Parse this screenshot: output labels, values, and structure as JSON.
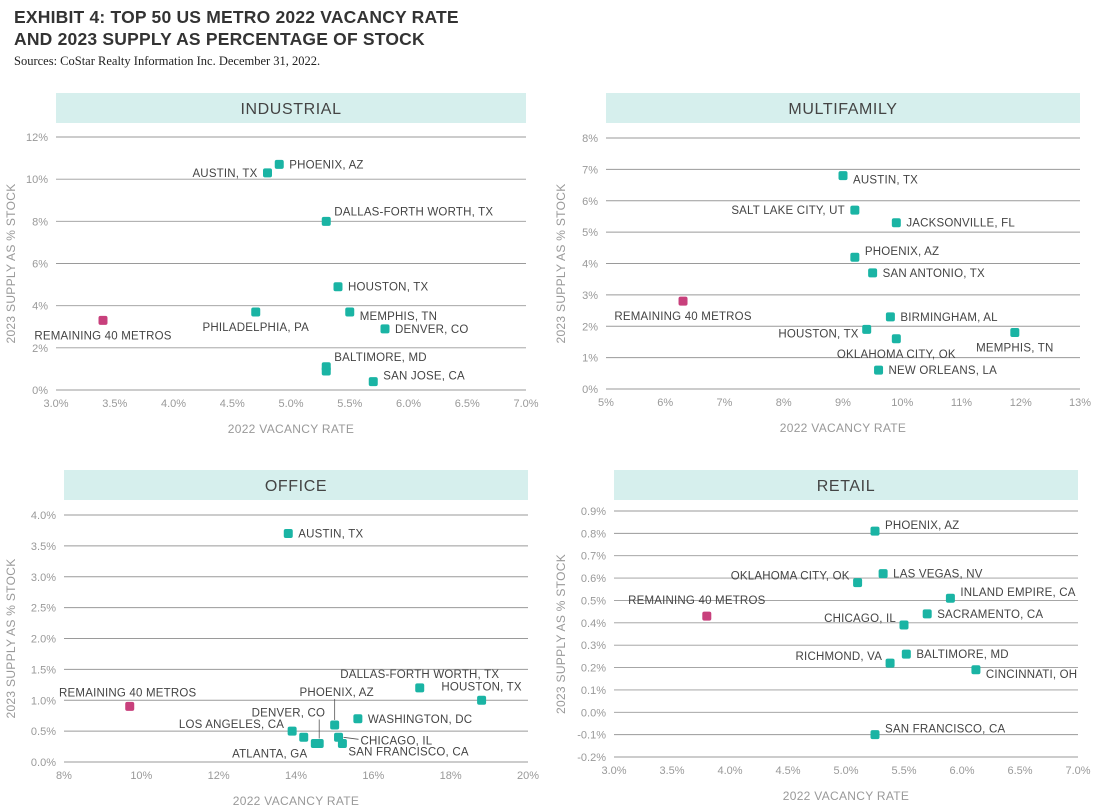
{
  "header": {
    "title_line1": "EXHIBIT 4: TOP 50 US METRO 2022 VACANCY RATE",
    "title_line2": "AND 2023 SUPPLY AS PERCENTAGE OF STOCK",
    "source": "Sources: CoStar Realty Information Inc. December 31, 2022."
  },
  "colors": {
    "metro": "#1ab4a4",
    "remaining": "#c8407c",
    "band": "#d6efed"
  },
  "chart_data": [
    {
      "type": "scatter",
      "title": "INDUSTRIAL",
      "xlabel": "2022 VACANCY RATE",
      "ylabel": "2023 SUPPLY AS % STOCK",
      "xlim": [
        3.0,
        7.0
      ],
      "ylim": [
        0,
        12
      ],
      "xticks": [
        3.0,
        3.5,
        4.0,
        4.5,
        5.0,
        5.5,
        6.0,
        6.5,
        7.0
      ],
      "xtick_labels": [
        "3.0%",
        "3.5%",
        "4.0%",
        "4.5%",
        "5.0%",
        "5.5%",
        "6.0%",
        "6.5%",
        "7.0%"
      ],
      "yticks": [
        0,
        2,
        4,
        6,
        8,
        10,
        12
      ],
      "ytick_labels": [
        "0%",
        "2%",
        "4%",
        "6%",
        "8%",
        "10%",
        "12%"
      ],
      "points": [
        {
          "label": "PHOENIX, AZ",
          "x": 4.9,
          "y": 10.7,
          "pos": "right"
        },
        {
          "label": "AUSTIN, TX",
          "x": 4.8,
          "y": 10.3,
          "pos": "left"
        },
        {
          "label": "DALLAS-FORTH WORTH, TX",
          "x": 5.3,
          "y": 8.0,
          "pos": "above-right"
        },
        {
          "label": "HOUSTON, TX",
          "x": 5.4,
          "y": 4.9,
          "pos": "right"
        },
        {
          "label": "PHILADELPHIA, PA",
          "x": 4.7,
          "y": 3.7,
          "pos": "below"
        },
        {
          "label": "MEMPHIS, TN",
          "x": 5.5,
          "y": 3.7,
          "pos": "right-low"
        },
        {
          "label": "DENVER, CO",
          "x": 5.8,
          "y": 2.9,
          "pos": "right"
        },
        {
          "label": "BALTIMORE, MD",
          "x": 5.3,
          "y": 1.1,
          "pos": "above-right"
        },
        {
          "label": "",
          "x": 5.3,
          "y": 0.9
        },
        {
          "label": "SAN JOSE, CA",
          "x": 5.7,
          "y": 0.4,
          "pos": "right-up"
        },
        {
          "label": "REMAINING 40 METROS",
          "x": 3.4,
          "y": 3.3,
          "pos": "below",
          "group": "remaining"
        }
      ]
    },
    {
      "type": "scatter",
      "title": "MULTIFAMILY",
      "xlabel": "2022 VACANCY RATE",
      "ylabel": "2023 SUPPLY AS % STOCK",
      "xlim": [
        5,
        13
      ],
      "ylim": [
        0,
        8
      ],
      "xticks": [
        5,
        6,
        7,
        8,
        9,
        10,
        11,
        12,
        13
      ],
      "xtick_labels": [
        "5%",
        "6%",
        "7%",
        "8%",
        "9%",
        "10%",
        "11%",
        "12%",
        "13%"
      ],
      "yticks": [
        0,
        1,
        2,
        3,
        4,
        5,
        6,
        7,
        8
      ],
      "ytick_labels": [
        "0%",
        "1%",
        "2%",
        "3%",
        "4%",
        "5%",
        "6%",
        "7%",
        "8%"
      ],
      "points": [
        {
          "label": "AUSTIN, TX",
          "x": 9.0,
          "y": 6.8,
          "pos": "right-low"
        },
        {
          "label": "SALT LAKE CITY, UT",
          "x": 9.2,
          "y": 5.7,
          "pos": "left"
        },
        {
          "label": "JACKSONVILLE, FL",
          "x": 9.9,
          "y": 5.3,
          "pos": "right"
        },
        {
          "label": "PHOENIX, AZ",
          "x": 9.2,
          "y": 4.2,
          "pos": "right-up"
        },
        {
          "label": "SAN ANTONIO, TX",
          "x": 9.5,
          "y": 3.7,
          "pos": "right"
        },
        {
          "label": "BIRMINGHAM, AL",
          "x": 9.8,
          "y": 2.3,
          "pos": "right"
        },
        {
          "label": "HOUSTON, TX",
          "x": 9.4,
          "y": 1.9,
          "pos": "left-low"
        },
        {
          "label": "OKLAHOMA CITY, OK",
          "x": 9.9,
          "y": 1.6,
          "pos": "below"
        },
        {
          "label": "MEMPHIS, TN",
          "x": 11.9,
          "y": 1.8,
          "pos": "below"
        },
        {
          "label": "NEW ORLEANS, LA",
          "x": 9.6,
          "y": 0.6,
          "pos": "right"
        },
        {
          "label": "REMAINING 40 METROS",
          "x": 6.3,
          "y": 2.8,
          "pos": "below",
          "group": "remaining"
        }
      ]
    },
    {
      "type": "scatter",
      "title": "OFFICE",
      "xlabel": "2022 VACANCY RATE",
      "ylabel": "2023 SUPPLY AS % STOCK",
      "xlim": [
        8,
        20
      ],
      "ylim": [
        0,
        4
      ],
      "xticks": [
        8,
        10,
        12,
        14,
        16,
        18,
        20
      ],
      "xtick_labels": [
        "8%",
        "10%",
        "12%",
        "14%",
        "16%",
        "18%",
        "20%"
      ],
      "yticks": [
        0,
        0.5,
        1.0,
        1.5,
        2.0,
        2.5,
        3.0,
        3.5,
        4.0
      ],
      "ytick_labels": [
        "0.0%",
        "0.5%",
        "1.0%",
        "1.5%",
        "2.0%",
        "2.5%",
        "3.0%",
        "3.5%",
        "4.0%"
      ],
      "points": [
        {
          "label": "AUSTIN, TX",
          "x": 13.8,
          "y": 3.7,
          "pos": "right"
        },
        {
          "label": "DALLAS-FORTH WORTH, TX",
          "x": 17.2,
          "y": 1.2,
          "pos": "above-center"
        },
        {
          "label": "HOUSTON, TX",
          "x": 18.8,
          "y": 1.0,
          "pos": "above-center"
        },
        {
          "label": "PHOENIX, AZ",
          "x": 15.0,
          "y": 0.6,
          "pos": "leader-up"
        },
        {
          "label": "WASHINGTON, DC",
          "x": 15.6,
          "y": 0.7,
          "pos": "right"
        },
        {
          "label": "DENVER, CO",
          "x": 14.6,
          "y": 0.3,
          "pos": "leader-up-left"
        },
        {
          "label": "LOS ANGELES, CA",
          "x": 13.9,
          "y": 0.5,
          "pos": "left-up"
        },
        {
          "label": "",
          "x": 14.2,
          "y": 0.4
        },
        {
          "label": "ATLANTA, GA",
          "x": 14.5,
          "y": 0.3,
          "pos": "left-below"
        },
        {
          "label": "CHICAGO, IL",
          "x": 15.1,
          "y": 0.4,
          "pos": "leader-right"
        },
        {
          "label": "SAN FRANCISCO, CA",
          "x": 15.2,
          "y": 0.3,
          "pos": "below-right"
        },
        {
          "label": "REMAINING 40 METROS",
          "x": 9.7,
          "y": 0.9,
          "pos": "above",
          "group": "remaining"
        }
      ]
    },
    {
      "type": "scatter",
      "title": "RETAIL",
      "xlabel": "2022 VACANCY RATE",
      "ylabel": "2023 SUPPLY AS % STOCK",
      "xlim": [
        3.0,
        7.0
      ],
      "ylim": [
        -0.2,
        0.9
      ],
      "xticks": [
        3.0,
        3.5,
        4.0,
        4.5,
        5.0,
        5.5,
        6.0,
        6.5,
        7.0
      ],
      "xtick_labels": [
        "3.0%",
        "3.5%",
        "4.0%",
        "4.5%",
        "5.0%",
        "5.5%",
        "6.0%",
        "6.5%",
        "7.0%"
      ],
      "yticks": [
        -0.2,
        -0.1,
        0.0,
        0.1,
        0.2,
        0.3,
        0.4,
        0.5,
        0.6,
        0.7,
        0.8,
        0.9
      ],
      "ytick_labels": [
        "-0.2%",
        "-0.1%",
        "0.0%",
        "0.1%",
        "0.2%",
        "0.3%",
        "0.4%",
        "0.5%",
        "0.6%",
        "0.7%",
        "0.8%",
        "0.9%"
      ],
      "points": [
        {
          "label": "PHOENIX, AZ",
          "x": 5.25,
          "y": 0.81,
          "pos": "right-up"
        },
        {
          "label": "LAS VEGAS, NV",
          "x": 5.32,
          "y": 0.62,
          "pos": "right"
        },
        {
          "label": "OKLAHOMA CITY, OK",
          "x": 5.1,
          "y": 0.58,
          "pos": "left-up"
        },
        {
          "label": "INLAND EMPIRE, CA",
          "x": 5.9,
          "y": 0.51,
          "pos": "right-up"
        },
        {
          "label": "SACRAMENTO, CA",
          "x": 5.7,
          "y": 0.44,
          "pos": "right"
        },
        {
          "label": "CHICAGO, IL",
          "x": 5.5,
          "y": 0.39,
          "pos": "left-up"
        },
        {
          "label": "BALTIMORE, MD",
          "x": 5.52,
          "y": 0.26,
          "pos": "right"
        },
        {
          "label": "RICHMOND, VA",
          "x": 5.38,
          "y": 0.22,
          "pos": "left-up"
        },
        {
          "label": "CINCINNATI, OH",
          "x": 6.12,
          "y": 0.19,
          "pos": "right-low"
        },
        {
          "label": "SAN FRANCISCO, CA",
          "x": 5.25,
          "y": -0.1,
          "pos": "right-up"
        },
        {
          "label": "REMAINING 40 METROS",
          "x": 3.8,
          "y": 0.43,
          "pos": "above-left",
          "group": "remaining"
        }
      ]
    }
  ]
}
